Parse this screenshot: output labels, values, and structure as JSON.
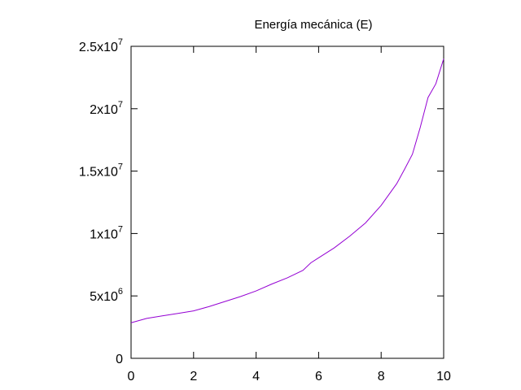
{
  "chart_data": {
    "type": "line",
    "title": "Energía mecánica (E)",
    "xlabel": "",
    "ylabel": "",
    "xlim": [
      0,
      10
    ],
    "ylim": [
      0,
      25000000
    ],
    "grid": false,
    "legend": "none",
    "x_ticks": [
      {
        "value": 0,
        "label": "0"
      },
      {
        "value": 2,
        "label": "2"
      },
      {
        "value": 4,
        "label": "4"
      },
      {
        "value": 6,
        "label": "6"
      },
      {
        "value": 8,
        "label": "8"
      },
      {
        "value": 10,
        "label": "10"
      }
    ],
    "y_ticks": [
      {
        "value": 0,
        "label": "0",
        "exp": ""
      },
      {
        "value": 5000000,
        "label": "5x10",
        "exp": "6"
      },
      {
        "value": 10000000,
        "label": "1x10",
        "exp": "7"
      },
      {
        "value": 15000000,
        "label": "1.5x10",
        "exp": "7"
      },
      {
        "value": 20000000,
        "label": "2x10",
        "exp": "7"
      },
      {
        "value": 25000000,
        "label": "2.5x10",
        "exp": "7"
      }
    ],
    "series": [
      {
        "color": "#9400d3",
        "x": [
          0,
          0.5,
          1,
          1.5,
          2,
          2.5,
          3,
          3.5,
          4,
          4.5,
          5,
          5.5,
          5.75,
          6,
          6.5,
          7,
          7.5,
          8,
          8.5,
          8.75,
          9,
          9.25,
          9.5,
          9.75,
          10
        ],
        "y": [
          2850000,
          3200000,
          3400000,
          3600000,
          3800000,
          4150000,
          4550000,
          4950000,
          5400000,
          5950000,
          6450000,
          7050000,
          7650000,
          8050000,
          8850000,
          9800000,
          10850000,
          12250000,
          14000000,
          15150000,
          16350000,
          18500000,
          20900000,
          22000000,
          24000000
        ]
      }
    ]
  }
}
